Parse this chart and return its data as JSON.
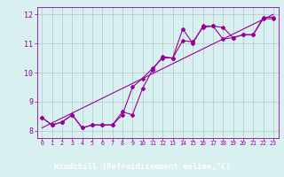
{
  "line1_x": [
    0,
    1,
    2,
    3,
    4,
    5,
    6,
    7,
    8,
    9,
    10,
    11,
    12,
    13,
    14,
    15,
    16,
    17,
    18,
    19,
    20,
    21,
    22,
    23
  ],
  "line1_y": [
    8.45,
    8.2,
    8.3,
    8.55,
    8.1,
    8.2,
    8.2,
    8.2,
    8.65,
    8.55,
    9.45,
    10.1,
    10.55,
    10.5,
    11.1,
    11.05,
    11.55,
    11.6,
    11.15,
    11.2,
    11.3,
    11.3,
    11.9,
    11.9
  ],
  "line2_x": [
    0,
    1,
    2,
    3,
    4,
    5,
    6,
    7,
    8,
    9,
    10,
    11,
    12,
    13,
    14,
    15,
    16,
    17,
    18,
    19,
    20,
    21,
    22,
    23
  ],
  "line2_y": [
    8.45,
    8.2,
    8.3,
    8.55,
    8.1,
    8.2,
    8.2,
    8.2,
    8.55,
    9.5,
    9.8,
    10.15,
    10.5,
    10.5,
    11.5,
    11.0,
    11.6,
    11.6,
    11.55,
    11.2,
    11.3,
    11.3,
    11.85,
    11.85
  ],
  "trend_x": [
    0,
    23
  ],
  "trend_y": [
    8.1,
    12.0
  ],
  "line_color": "#990099",
  "marker": "D",
  "markersize": 2.0,
  "linewidth": 0.8,
  "bg_color": "#d8f0f0",
  "grid_color": "#b0c8c8",
  "xlabel": "Windchill (Refroidissement éolien,°C)",
  "xlim": [
    -0.5,
    23.5
  ],
  "ylim": [
    7.75,
    12.25
  ],
  "yticks": [
    8,
    9,
    10,
    11,
    12
  ],
  "xticks": [
    0,
    1,
    2,
    3,
    4,
    5,
    6,
    7,
    8,
    9,
    10,
    11,
    12,
    13,
    14,
    15,
    16,
    17,
    18,
    19,
    20,
    21,
    22,
    23
  ],
  "xtick_labels": [
    "0",
    "1",
    "2",
    "3",
    "4",
    "5",
    "6",
    "7",
    "8",
    "9",
    "10",
    "11",
    "12",
    "13",
    "14",
    "15",
    "16",
    "17",
    "18",
    "19",
    "20",
    "21",
    "22",
    "23"
  ],
  "xlabel_color": "#990099",
  "xlabel_bg": "#990099",
  "xlabel_fg": "#ffffff"
}
